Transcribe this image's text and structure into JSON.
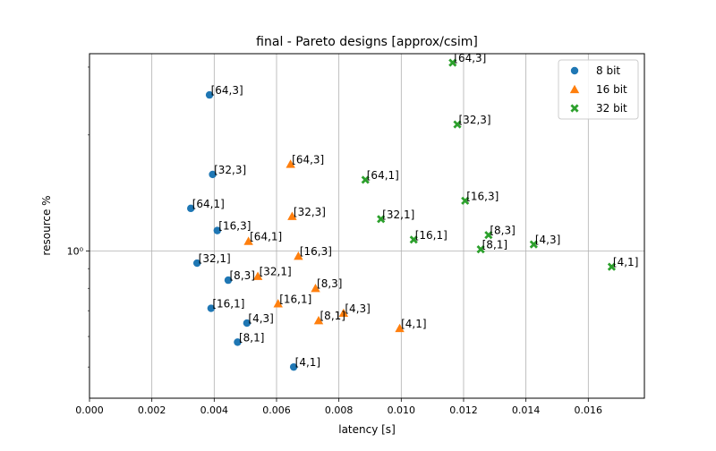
{
  "chart_data": {
    "type": "scatter",
    "title": "final - Pareto designs [approx/csim]",
    "xlabel": "latency [s]",
    "ylabel": "resource %",
    "xlim": [
      0.0,
      0.0178
    ],
    "ylim": [
      0.415,
      3.25
    ],
    "yscale": "log",
    "grid": true,
    "legend_position": "top-right",
    "x_ticks": [
      0.0,
      0.002,
      0.004,
      0.006,
      0.008,
      0.01,
      0.012,
      0.014,
      0.016
    ],
    "x_tick_labels": [
      "0.000",
      "0.002",
      "0.004",
      "0.006",
      "0.008",
      "0.010",
      "0.012",
      "0.014",
      "0.016"
    ],
    "y_ticks": [
      1.0
    ],
    "y_tick_labels": [
      "10⁰"
    ],
    "series": [
      {
        "name": "8 bit",
        "marker": "circle",
        "color": "#1f77b4",
        "points": [
          {
            "x": 0.00385,
            "y": 2.54,
            "label": "[64,3]"
          },
          {
            "x": 0.00395,
            "y": 1.58,
            "label": "[32,3]"
          },
          {
            "x": 0.00325,
            "y": 1.29,
            "label": "[64,1]"
          },
          {
            "x": 0.0041,
            "y": 1.13,
            "label": "[16,3]"
          },
          {
            "x": 0.00345,
            "y": 0.93,
            "label": "[32,1]"
          },
          {
            "x": 0.00445,
            "y": 0.84,
            "label": "[8,3]"
          },
          {
            "x": 0.0039,
            "y": 0.71,
            "label": "[16,1]"
          },
          {
            "x": 0.00505,
            "y": 0.65,
            "label": "[4,3]"
          },
          {
            "x": 0.00475,
            "y": 0.58,
            "label": "[8,1]"
          },
          {
            "x": 0.00655,
            "y": 0.5,
            "label": "[4,1]"
          }
        ]
      },
      {
        "name": "16 bit",
        "marker": "triangle",
        "color": "#ff7f0e",
        "points": [
          {
            "x": 0.00645,
            "y": 1.68,
            "label": "[64,3]"
          },
          {
            "x": 0.0065,
            "y": 1.23,
            "label": "[32,3]"
          },
          {
            "x": 0.0051,
            "y": 1.06,
            "label": "[64,1]"
          },
          {
            "x": 0.0067,
            "y": 0.97,
            "label": "[16,3]"
          },
          {
            "x": 0.0054,
            "y": 0.86,
            "label": "[32,1]"
          },
          {
            "x": 0.00725,
            "y": 0.8,
            "label": "[8,3]"
          },
          {
            "x": 0.00605,
            "y": 0.73,
            "label": "[16,1]"
          },
          {
            "x": 0.00815,
            "y": 0.69,
            "label": "[4,3]"
          },
          {
            "x": 0.00735,
            "y": 0.66,
            "label": "[8,1]"
          },
          {
            "x": 0.00995,
            "y": 0.63,
            "label": "[4,1]"
          }
        ]
      },
      {
        "name": "32 bit",
        "marker": "x",
        "color": "#2ca02c",
        "points": [
          {
            "x": 0.01165,
            "y": 3.08,
            "label": "[64,3]"
          },
          {
            "x": 0.0118,
            "y": 2.13,
            "label": "[32,3]"
          },
          {
            "x": 0.00885,
            "y": 1.53,
            "label": "[64,1]"
          },
          {
            "x": 0.01205,
            "y": 1.35,
            "label": "[16,3]"
          },
          {
            "x": 0.00935,
            "y": 1.21,
            "label": "[32,1]"
          },
          {
            "x": 0.0128,
            "y": 1.1,
            "label": "[8,3]"
          },
          {
            "x": 0.0104,
            "y": 1.07,
            "label": "[16,1]"
          },
          {
            "x": 0.01425,
            "y": 1.04,
            "label": "[4,3]"
          },
          {
            "x": 0.01255,
            "y": 1.01,
            "label": "[8,1]"
          },
          {
            "x": 0.01675,
            "y": 0.91,
            "label": "[4,1]"
          }
        ]
      }
    ]
  }
}
